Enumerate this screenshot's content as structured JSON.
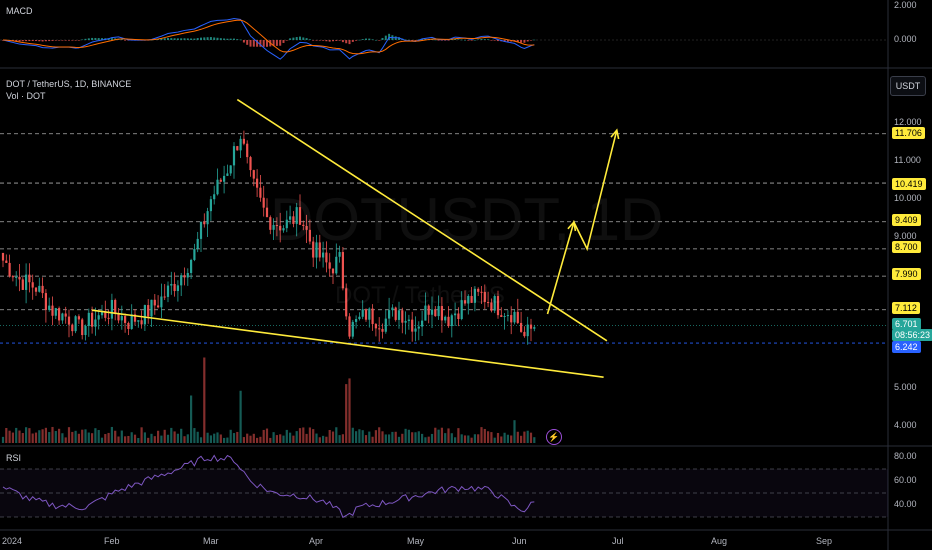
{
  "macd_pane": {
    "title": "MACD",
    "axis_ticks": [
      "2.000",
      "0.000"
    ]
  },
  "main_pane": {
    "symbol_line": "DOT / TetherUS, 1D, BINANCE",
    "volume_line": "Vol · DOT",
    "currency_button": "USDT",
    "watermark_symbol": "DOTUSDT, 1D",
    "watermark_name": "DOT / TetherUS",
    "axis_ticks": [
      "12.000",
      "11.000",
      "10.000",
      "9.000",
      "5.000",
      "4.000"
    ],
    "level_tags": [
      "11.706",
      "10.419",
      "9.409",
      "8.700",
      "7.990",
      "7.112"
    ],
    "current_price": "6.701",
    "countdown": "08:56:23",
    "support_price": "6.242",
    "colors": {
      "up": "#26a69a",
      "down": "#ef5350",
      "trendline": "#ffeb3b",
      "price_tag_bg": "#26a69a",
      "support_bg": "#2962ff",
      "level_tag_bg": "#ffeb3b",
      "macd_line": "#2962ff",
      "signal_line": "#ff6d00",
      "rsi_line": "#7e57c2"
    }
  },
  "rsi_pane": {
    "title": "RSI",
    "axis_ticks": [
      "80.00",
      "60.00",
      "40.00"
    ]
  },
  "time_axis": [
    "2024",
    "Feb",
    "Mar",
    "Apr",
    "May",
    "Jun",
    "Jul",
    "Aug",
    "Sep"
  ],
  "chart_data": {
    "type": "candlestick",
    "title": "DOT / TetherUS, 1D, BINANCE",
    "x_start": "2024-01-01",
    "price_levels": [
      11.706,
      10.419,
      9.409,
      8.7,
      7.99,
      7.112
    ],
    "support_level": 6.242,
    "current_price": 6.701,
    "ylim": [
      3.7,
      12.6
    ],
    "price_anchors": [
      [
        0,
        8.4
      ],
      [
        5,
        7.9
      ],
      [
        10,
        7.7
      ],
      [
        15,
        7.1
      ],
      [
        20,
        6.9
      ],
      [
        23,
        6.6
      ],
      [
        28,
        6.9
      ],
      [
        33,
        7.1
      ],
      [
        38,
        6.8
      ],
      [
        43,
        7.0
      ],
      [
        48,
        7.4
      ],
      [
        53,
        7.9
      ],
      [
        58,
        8.6
      ],
      [
        63,
        10.0
      ],
      [
        68,
        10.8
      ],
      [
        72,
        11.7
      ],
      [
        75,
        10.5
      ],
      [
        80,
        9.5
      ],
      [
        85,
        9.3
      ],
      [
        90,
        9.6
      ],
      [
        94,
        8.7
      ],
      [
        99,
        8.2
      ],
      [
        102,
        8.4
      ],
      [
        105,
        6.6
      ],
      [
        110,
        7.0
      ],
      [
        115,
        6.8
      ],
      [
        120,
        7.1
      ],
      [
        125,
        6.7
      ],
      [
        130,
        7.3
      ],
      [
        135,
        6.9
      ],
      [
        140,
        7.3
      ],
      [
        145,
        7.5
      ],
      [
        150,
        7.2
      ],
      [
        155,
        7.0
      ],
      [
        158,
        6.4
      ],
      [
        161,
        6.7
      ]
    ],
    "volume_spikes": [
      [
        57,
        5.0
      ],
      [
        61,
        9.0
      ],
      [
        72,
        5.5
      ],
      [
        104,
        6.2
      ],
      [
        105,
        6.8
      ],
      [
        155,
        2.4
      ]
    ],
    "rsi_anchors": [
      [
        0,
        55
      ],
      [
        8,
        45
      ],
      [
        15,
        40
      ],
      [
        25,
        38
      ],
      [
        35,
        52
      ],
      [
        45,
        62
      ],
      [
        55,
        72
      ],
      [
        62,
        80
      ],
      [
        70,
        78
      ],
      [
        75,
        60
      ],
      [
        82,
        50
      ],
      [
        90,
        48
      ],
      [
        98,
        42
      ],
      [
        104,
        30
      ],
      [
        108,
        38
      ],
      [
        116,
        42
      ],
      [
        124,
        47
      ],
      [
        132,
        52
      ],
      [
        140,
        55
      ],
      [
        148,
        52
      ],
      [
        155,
        38
      ],
      [
        158,
        36
      ],
      [
        161,
        42
      ]
    ],
    "rsi_levels": [
      70,
      50,
      30
    ],
    "trendlines": [
      {
        "from": [
          "2024-03-12",
          12.6
        ],
        "to": [
          "2024-07-02",
          6.3
        ]
      },
      {
        "from": [
          "2024-01-28",
          7.1
        ],
        "to": [
          "2024-07-01",
          5.35
        ]
      }
    ],
    "projection": [
      [
        "2024-06-14",
        7.0
      ],
      [
        "2024-06-22",
        9.4
      ],
      [
        "2024-06-26",
        8.7
      ],
      [
        "2024-07-05",
        11.8
      ]
    ]
  }
}
